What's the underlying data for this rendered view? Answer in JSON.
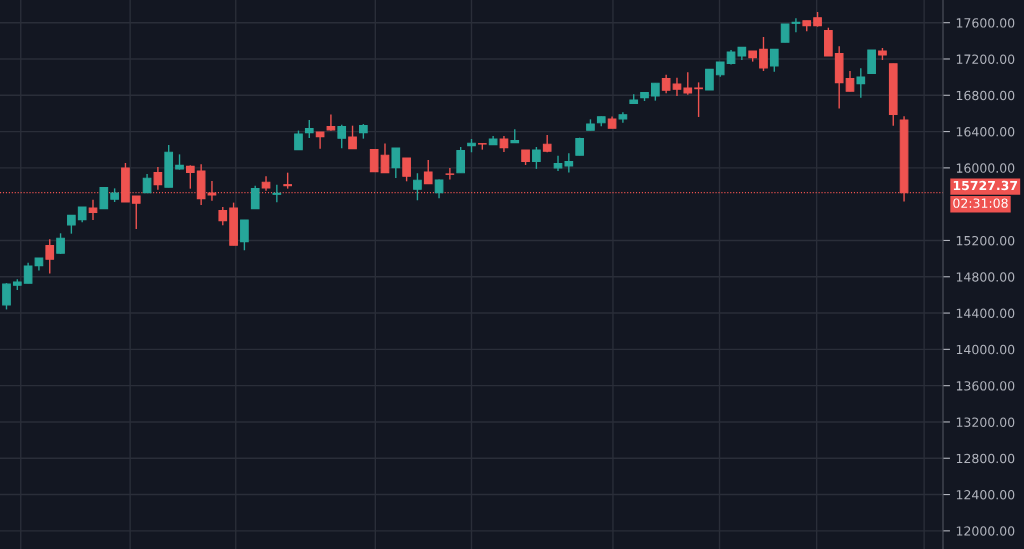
{
  "chart_data": {
    "type": "candlestick",
    "categories": [
      null,
      null,
      null,
      null,
      null,
      null,
      null,
      null,
      null,
      null,
      null,
      null,
      null,
      null,
      null,
      null,
      null,
      null,
      null,
      null,
      null,
      null,
      null,
      null,
      null,
      null,
      null,
      null,
      null,
      null,
      null,
      null,
      null,
      null,
      null,
      null,
      null,
      null,
      null,
      null,
      null,
      null,
      null,
      null,
      null,
      null,
      null,
      null,
      null,
      null,
      null,
      null,
      null,
      null,
      null,
      null,
      null,
      null,
      null,
      null,
      null,
      null,
      null,
      null,
      null,
      null,
      null,
      null,
      null,
      null,
      null,
      null,
      null,
      null,
      null,
      null,
      null,
      null,
      null,
      null,
      null,
      null,
      null,
      null
    ],
    "ohlc": [
      [
        14490,
        14730,
        14440,
        14720
      ],
      [
        14706,
        14772,
        14655,
        14743
      ],
      [
        14728,
        14955,
        14728,
        14919
      ],
      [
        14923,
        15007,
        14868,
        15007
      ],
      [
        15143,
        15213,
        14836,
        14993
      ],
      [
        15059,
        15279,
        15052,
        15224
      ],
      [
        15371,
        15477,
        15275,
        15477
      ],
      [
        15430,
        15569,
        15400,
        15569
      ],
      [
        15558,
        15650,
        15425,
        15510
      ],
      [
        15551,
        15790,
        15551,
        15782
      ],
      [
        15654,
        15774,
        15624,
        15723
      ],
      [
        15999,
        16054,
        15624,
        15624
      ],
      [
        15690,
        15690,
        15326,
        15610
      ],
      [
        15727,
        15933,
        15727,
        15885
      ],
      [
        15948,
        16010,
        15760,
        15815
      ],
      [
        15786,
        16252,
        15786,
        16172
      ],
      [
        15988,
        16149,
        15981,
        16028
      ],
      [
        16017,
        16028,
        15771,
        15951
      ],
      [
        15966,
        16039,
        15591,
        15661
      ],
      [
        15723,
        15855,
        15639,
        15701
      ],
      [
        15529,
        15569,
        15367,
        15419
      ],
      [
        15558,
        15617,
        15147,
        15147
      ],
      [
        15187,
        15426,
        15092,
        15426
      ],
      [
        15551,
        15804,
        15551,
        15771
      ],
      [
        15841,
        15907,
        15749,
        15779
      ],
      [
        15709,
        15815,
        15620,
        15720
      ],
      [
        15815,
        15947,
        15771,
        15804
      ],
      [
        16201,
        16411,
        16201,
        16374
      ],
      [
        16388,
        16528,
        16330,
        16432
      ],
      [
        16396,
        16396,
        16211,
        16344
      ],
      [
        16454,
        16587,
        16410,
        16418
      ],
      [
        16326,
        16476,
        16215,
        16454
      ],
      [
        16340,
        16465,
        16212,
        16212
      ],
      [
        16388,
        16483,
        16322,
        16465
      ],
      [
        16201,
        16201,
        15959,
        15959
      ],
      [
        16139,
        16270,
        15948,
        15948
      ],
      [
        16003,
        16219,
        15889,
        16219
      ],
      [
        16109,
        16109,
        15852,
        15907
      ],
      [
        15764,
        15941,
        15643,
        15863
      ],
      [
        15955,
        16087,
        15826,
        15826
      ],
      [
        15727,
        15871,
        15665,
        15867
      ],
      [
        15933,
        16000,
        15871,
        15929
      ],
      [
        15947,
        16230,
        15947,
        16190
      ],
      [
        16245,
        16318,
        16172,
        16271
      ],
      [
        16267,
        16267,
        16201,
        16263
      ],
      [
        16256,
        16351,
        16256,
        16318
      ],
      [
        16318,
        16351,
        16175,
        16223
      ],
      [
        16278,
        16425,
        16278,
        16300
      ],
      [
        16197,
        16197,
        16032,
        16072
      ],
      [
        16072,
        16230,
        15989,
        16197
      ],
      [
        16260,
        16362,
        16172,
        16183
      ],
      [
        15999,
        16135,
        15966,
        16047
      ],
      [
        16021,
        16160,
        15948,
        16069
      ],
      [
        16139,
        16333,
        16139,
        16322
      ],
      [
        16414,
        16535,
        16414,
        16484
      ],
      [
        16498,
        16565,
        16458,
        16564
      ],
      [
        16539,
        16567,
        16436,
        16436
      ],
      [
        16539,
        16612,
        16498,
        16586
      ],
      [
        16711,
        16810,
        16711,
        16748
      ],
      [
        16774,
        16829,
        16737,
        16829
      ],
      [
        16792,
        16932,
        16741,
        16932
      ],
      [
        16983,
        17025,
        16822,
        16855
      ],
      [
        16924,
        16994,
        16792,
        16866
      ],
      [
        16880,
        17055,
        16807,
        16825
      ],
      [
        16880,
        16942,
        16561,
        16873
      ],
      [
        16858,
        17086,
        16858,
        17086
      ],
      [
        17027,
        17167,
        17005,
        17167
      ],
      [
        17152,
        17299,
        17138,
        17277
      ],
      [
        17233,
        17328,
        17189,
        17328
      ],
      [
        17288,
        17288,
        17171,
        17215
      ],
      [
        17306,
        17442,
        17068,
        17101
      ],
      [
        17123,
        17306,
        17060,
        17306
      ],
      [
        17384,
        17586,
        17384,
        17586
      ],
      [
        17593,
        17648,
        17494,
        17604
      ],
      [
        17622,
        17622,
        17505,
        17567
      ],
      [
        17655,
        17718,
        17556,
        17567
      ],
      [
        17512,
        17545,
        17233,
        17233
      ],
      [
        17259,
        17340,
        16653,
        16939
      ],
      [
        16983,
        17068,
        16844,
        16844
      ],
      [
        16928,
        17097,
        16774,
        17002
      ],
      [
        17042,
        17299,
        17042,
        17299
      ],
      [
        17288,
        17321,
        17189,
        17244
      ],
      [
        17148,
        17148,
        16465,
        16590
      ],
      [
        16528,
        16568,
        15630,
        15727.37
      ]
    ],
    "colors": [
      "#26a69a",
      "#26a69a",
      "#26a69a",
      "#26a69a",
      "#ef5350",
      "#26a69a",
      "#26a69a",
      "#26a69a",
      "#ef5350",
      "#26a69a",
      "#26a69a",
      "#ef5350",
      "#ef5350",
      "#26a69a",
      "#ef5350",
      "#26a69a",
      "#26a69a",
      "#ef5350",
      "#ef5350",
      "#ef5350",
      "#ef5350",
      "#ef5350",
      "#26a69a",
      "#26a69a",
      "#ef5350",
      "#26a69a",
      "#ef5350",
      "#26a69a",
      "#26a69a",
      "#ef5350",
      "#ef5350",
      "#26a69a",
      "#ef5350",
      "#26a69a",
      "#ef5350",
      "#ef5350",
      "#26a69a",
      "#ef5350",
      "#26a69a",
      "#ef5350",
      "#26a69a",
      "#ef5350",
      "#26a69a",
      "#26a69a",
      "#ef5350",
      "#26a69a",
      "#ef5350",
      "#26a69a",
      "#ef5350",
      "#26a69a",
      "#ef5350",
      "#26a69a",
      "#26a69a",
      "#26a69a",
      "#26a69a",
      "#26a69a",
      "#ef5350",
      "#26a69a",
      "#26a69a",
      "#26a69a",
      "#26a69a",
      "#ef5350",
      "#ef5350",
      "#ef5350",
      "#ef5350",
      "#26a69a",
      "#26a69a",
      "#26a69a",
      "#26a69a",
      "#ef5350",
      "#ef5350",
      "#26a69a",
      "#26a69a",
      "#26a69a",
      "#ef5350",
      "#ef5350",
      "#ef5350",
      "#ef5350",
      "#ef5350",
      "#26a69a",
      "#26a69a",
      "#ef5350",
      "#ef5350",
      "#ef5350"
    ],
    "ylim": [
      11800,
      17850
    ],
    "yticks": [
      {
        "value": 12000,
        "label": "12000.00"
      },
      {
        "value": 12400,
        "label": "12400.00"
      },
      {
        "value": 12800,
        "label": "12800.00"
      },
      {
        "value": 13200,
        "label": "13200.00"
      },
      {
        "value": 13600,
        "label": "13600.00"
      },
      {
        "value": 14000,
        "label": "14000.00"
      },
      {
        "value": 14400,
        "label": "14400.00"
      },
      {
        "value": 14800,
        "label": "14800.00"
      },
      {
        "value": 15200,
        "label": "15200.00"
      },
      {
        "value": 16000,
        "label": "16000.00"
      },
      {
        "value": 16400,
        "label": "16400.00"
      },
      {
        "value": 16800,
        "label": "16800.00"
      },
      {
        "value": 17200,
        "label": "17200.00"
      },
      {
        "value": 17600,
        "label": "17600.00"
      }
    ],
    "ref_lines": [
      {
        "axis": "y",
        "value": 15727.37,
        "label": "15727.37",
        "color": "#ef5350",
        "line_style": "dotted"
      }
    ],
    "annotations": [
      "02:31:08"
    ],
    "grid": true
  }
}
